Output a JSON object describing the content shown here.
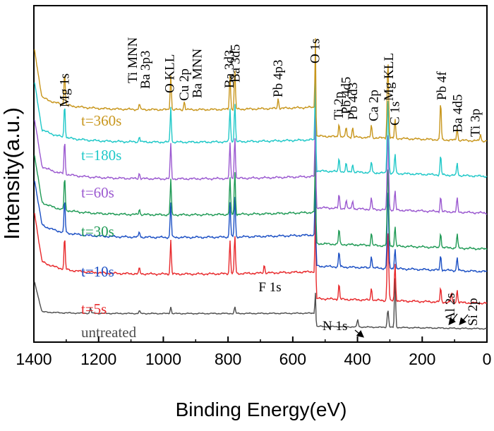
{
  "chart_data": {
    "type": "line",
    "xlabel": "Binding Energy(eV)",
    "ylabel": "Intensity(a.u.)",
    "xlim": [
      1400,
      0
    ],
    "x_reversed": true,
    "xticks": [
      1400,
      1200,
      1000,
      800,
      600,
      400,
      200,
      0
    ],
    "xtick_labels": [
      "1400",
      "1200",
      "1000",
      "800",
      "600",
      "400",
      "200",
      "0"
    ],
    "y_ticks_shown": false,
    "grid": false,
    "series": [
      {
        "name": "untreated",
        "color": "#4d4d4d",
        "peaks": [
          [
            1225,
            8
          ],
          [
            1074,
            4
          ],
          [
            977,
            10
          ],
          [
            779,
            9
          ],
          [
            530,
            48
          ],
          [
            400,
            5
          ],
          [
            399,
            6
          ],
          [
            306,
            25
          ],
          [
            284,
            72
          ]
        ]
      },
      {
        "name": "t=5s",
        "color": "#e8282b",
        "peaks": [
          [
            1305,
            46
          ],
          [
            1074,
            8
          ],
          [
            977,
            48
          ],
          [
            794,
            48
          ],
          [
            779,
            55
          ],
          [
            688,
            12
          ],
          [
            530,
            130
          ],
          [
            457,
            22
          ],
          [
            357,
            18
          ],
          [
            306,
            100
          ],
          [
            284,
            55
          ],
          [
            143,
            20
          ],
          [
            110,
            14
          ],
          [
            92,
            18
          ]
        ]
      },
      {
        "name": "t=10s",
        "color": "#1b4fc4",
        "peaks": [
          [
            1305,
            48
          ],
          [
            1074,
            8
          ],
          [
            977,
            50
          ],
          [
            794,
            50
          ],
          [
            779,
            58
          ],
          [
            530,
            140
          ],
          [
            457,
            22
          ],
          [
            357,
            18
          ],
          [
            306,
            112
          ],
          [
            284,
            30
          ],
          [
            143,
            22
          ],
          [
            92,
            20
          ]
        ]
      },
      {
        "name": "t=30s",
        "color": "#1f9a55",
        "peaks": [
          [
            1305,
            48
          ],
          [
            1074,
            8
          ],
          [
            977,
            50
          ],
          [
            794,
            52
          ],
          [
            779,
            62
          ],
          [
            530,
            145
          ],
          [
            457,
            22
          ],
          [
            357,
            18
          ],
          [
            306,
            112
          ],
          [
            284,
            28
          ],
          [
            143,
            22
          ],
          [
            92,
            20
          ]
        ]
      },
      {
        "name": "t=60s",
        "color": "#9b59d0",
        "peaks": [
          [
            1305,
            48
          ],
          [
            1074,
            8
          ],
          [
            977,
            50
          ],
          [
            794,
            50
          ],
          [
            779,
            60
          ],
          [
            530,
            145
          ],
          [
            457,
            20
          ],
          [
            435,
            12
          ],
          [
            415,
            12
          ],
          [
            357,
            16
          ],
          [
            306,
            112
          ],
          [
            284,
            28
          ],
          [
            143,
            22
          ],
          [
            92,
            20
          ]
        ]
      },
      {
        "name": "t=180s",
        "color": "#1fc8c8",
        "peaks": [
          [
            1305,
            48
          ],
          [
            1074,
            8
          ],
          [
            977,
            50
          ],
          [
            794,
            48
          ],
          [
            779,
            56
          ],
          [
            530,
            140
          ],
          [
            457,
            20
          ],
          [
            435,
            12
          ],
          [
            415,
            12
          ],
          [
            357,
            16
          ],
          [
            306,
            108
          ],
          [
            284,
            28
          ],
          [
            143,
            28
          ],
          [
            92,
            18
          ]
        ]
      },
      {
        "name": "t=360s",
        "color": "#c8961c",
        "peaks": [
          [
            1305,
            48
          ],
          [
            1074,
            8
          ],
          [
            977,
            50
          ],
          [
            935,
            12
          ],
          [
            794,
            50
          ],
          [
            779,
            56
          ],
          [
            645,
            14
          ],
          [
            530,
            140
          ],
          [
            457,
            20
          ],
          [
            435,
            14
          ],
          [
            415,
            14
          ],
          [
            357,
            18
          ],
          [
            306,
            110
          ],
          [
            284,
            28
          ],
          [
            143,
            55
          ],
          [
            92,
            18
          ],
          [
            20,
            10
          ]
        ]
      }
    ],
    "peak_labels": [
      {
        "text": "Mg 1s",
        "x": 1305
      },
      {
        "text": "Ti MNN",
        "x": 1095
      },
      {
        "text": "Ba 3p3",
        "x": 1055
      },
      {
        "text": "O KLL",
        "x": 980
      },
      {
        "text": "Cu 2p",
        "x": 935
      },
      {
        "text": "Ba MNN",
        "x": 895
      },
      {
        "text": "Ba 3d3",
        "x": 796
      },
      {
        "text": "Ba 3d5",
        "x": 777
      },
      {
        "text": "Pb 4p3",
        "x": 645
      },
      {
        "text": "O 1s",
        "x": 531
      },
      {
        "text": "Ti 2p",
        "x": 458
      },
      {
        "text": "Pb 4d5",
        "x": 435
      },
      {
        "text": "Pb 4d3",
        "x": 414
      },
      {
        "text": "Ca 2p",
        "x": 350
      },
      {
        "text": "Mg KLL",
        "x": 303
      },
      {
        "text": "C 1s",
        "x": 285
      },
      {
        "text": "Pb 4f",
        "x": 140
      },
      {
        "text": "Ba 4d5",
        "x": 90
      },
      {
        "text": "Ti 3p",
        "x": 36
      },
      {
        "text": "F 1s",
        "x": 688
      },
      {
        "text": "N 1s",
        "x": 400
      },
      {
        "text": "Al 2s",
        "x": 118
      },
      {
        "text": "Si 2p",
        "x": 98
      }
    ]
  }
}
